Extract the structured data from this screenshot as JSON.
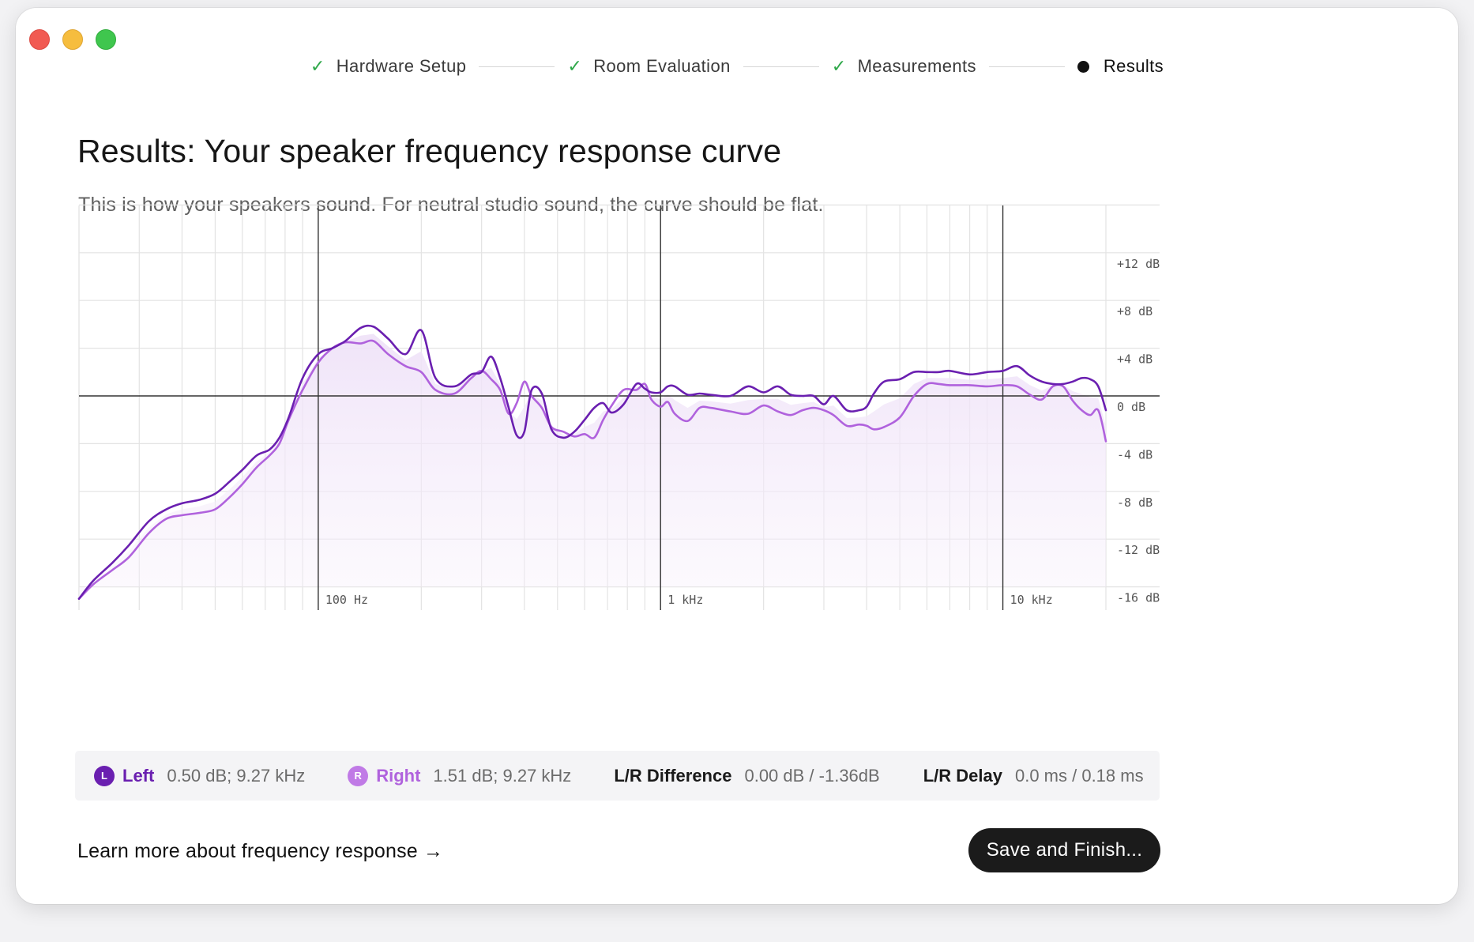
{
  "window": {
    "controls": [
      "close-button",
      "minimize-button",
      "maximize-button"
    ]
  },
  "stepper": {
    "steps": [
      {
        "label": "Hardware Setup",
        "status": "done"
      },
      {
        "label": "Room Evaluation",
        "status": "done"
      },
      {
        "label": "Measurements",
        "status": "done"
      },
      {
        "label": "Results",
        "status": "current"
      }
    ],
    "check_glyph": "✓"
  },
  "header": {
    "title": "Results: Your speaker frequency response curve",
    "subtitle": "This is how your speakers sound. For neutral studio sound, the curve should be flat."
  },
  "colors": {
    "left": "#6a1fb0",
    "right": "#b062dd",
    "fill": "#f3eafa",
    "grid": "#e3e3e3",
    "major_grid": "#333333",
    "button": "#1b1b1b"
  },
  "chart_data": {
    "type": "line",
    "x_scale": "log",
    "xlim": [
      20,
      20000
    ],
    "ylim": [
      -16,
      16
    ],
    "y_ticks": [
      {
        "value": 12,
        "label": "+12 dB"
      },
      {
        "value": 8,
        "label": "+8 dB"
      },
      {
        "value": 4,
        "label": "+4 dB"
      },
      {
        "value": 0,
        "label": "0 dB"
      },
      {
        "value": -4,
        "label": "-4 dB"
      },
      {
        "value": -8,
        "label": "-8 dB"
      },
      {
        "value": -12,
        "label": "-12 dB"
      },
      {
        "value": -16,
        "label": "-16 dB"
      }
    ],
    "x_ticks": [
      {
        "value": 100,
        "label": "100 Hz"
      },
      {
        "value": 1000,
        "label": "1 kHz"
      },
      {
        "value": 10000,
        "label": "10 kHz"
      }
    ],
    "grid": true,
    "series": [
      {
        "name": "Left",
        "x": [
          20,
          22,
          25,
          28,
          32,
          36,
          40,
          45,
          50,
          55,
          60,
          66,
          72,
          77,
          82,
          90,
          100,
          110,
          120,
          133,
          145,
          160,
          180,
          200,
          220,
          250,
          280,
          300,
          320,
          340,
          360,
          380,
          400,
          420,
          450,
          480,
          520,
          560,
          600,
          640,
          680,
          720,
          780,
          850,
          900,
          940,
          1000,
          1050,
          1100,
          1200,
          1300,
          1400,
          1600,
          1800,
          2000,
          2200,
          2400,
          2600,
          2800,
          3000,
          3200,
          3500,
          3800,
          4000,
          4200,
          4500,
          5000,
          5500,
          6000,
          6500,
          7000,
          8000,
          9000,
          10000,
          11000,
          12000,
          13000,
          14000,
          15000,
          16000,
          17000,
          18000,
          19000,
          20000
        ],
        "y": [
          -17,
          -15.5,
          -14,
          -12.5,
          -10.5,
          -9.5,
          -9.0,
          -8.7,
          -8.2,
          -7.2,
          -6.2,
          -5.0,
          -4.5,
          -3.5,
          -1.8,
          1.5,
          3.5,
          4.0,
          4.6,
          5.7,
          5.8,
          4.8,
          3.5,
          5.5,
          1.5,
          0.8,
          1.8,
          2.0,
          3.3,
          1.5,
          -1.0,
          -3.3,
          -3.0,
          0.5,
          0.2,
          -2.8,
          -3.5,
          -3.0,
          -2.0,
          -1.0,
          -0.6,
          -1.4,
          -0.7,
          1.0,
          0.6,
          0.3,
          0.3,
          0.8,
          0.8,
          0.1,
          0.2,
          0.1,
          0.0,
          0.8,
          0.3,
          0.8,
          0.1,
          0.0,
          0.0,
          -0.7,
          0.0,
          -1.2,
          -1.2,
          -0.9,
          0.2,
          1.2,
          1.4,
          2.0,
          2.0,
          2.0,
          2.1,
          1.8,
          2.0,
          2.1,
          2.5,
          1.7,
          1.2,
          1.0,
          1.0,
          1.2,
          1.5,
          1.4,
          0.8,
          -1.2
        ]
      },
      {
        "name": "Right",
        "x": [
          20,
          22,
          25,
          28,
          32,
          36,
          40,
          45,
          50,
          55,
          60,
          66,
          72,
          77,
          82,
          90,
          100,
          110,
          120,
          133,
          145,
          160,
          180,
          200,
          220,
          250,
          280,
          300,
          320,
          340,
          360,
          380,
          400,
          420,
          450,
          480,
          520,
          560,
          600,
          640,
          680,
          720,
          780,
          850,
          900,
          940,
          1000,
          1050,
          1100,
          1200,
          1300,
          1400,
          1600,
          1800,
          2000,
          2200,
          2400,
          2600,
          2800,
          3000,
          3200,
          3500,
          3800,
          4000,
          4200,
          4500,
          5000,
          5500,
          6000,
          6500,
          7000,
          8000,
          9000,
          10000,
          11000,
          12000,
          13000,
          14000,
          15000,
          16000,
          17000,
          18000,
          19000,
          20000
        ],
        "y": [
          -17,
          -15.8,
          -14.6,
          -13.5,
          -11.5,
          -10.3,
          -10.0,
          -9.8,
          -9.5,
          -8.5,
          -7.4,
          -6.0,
          -5.0,
          -4.0,
          -2.0,
          0.5,
          2.8,
          4.0,
          4.5,
          4.4,
          4.6,
          3.5,
          2.5,
          2.0,
          0.5,
          0.2,
          1.5,
          2.1,
          1.4,
          0.5,
          -1.5,
          -0.6,
          1.2,
          0.0,
          -1.0,
          -2.6,
          -3.0,
          -3.4,
          -3.2,
          -3.5,
          -2.0,
          -0.8,
          0.5,
          0.5,
          1.0,
          -0.3,
          -0.9,
          -0.5,
          -1.5,
          -2.1,
          -1.0,
          -1.0,
          -1.3,
          -1.5,
          -0.8,
          -1.3,
          -1.6,
          -1.2,
          -1.0,
          -1.2,
          -1.6,
          -2.5,
          -2.4,
          -2.5,
          -2.8,
          -2.6,
          -1.8,
          0.0,
          1.0,
          1.0,
          0.9,
          0.9,
          0.8,
          0.9,
          0.8,
          0.1,
          -0.3,
          0.8,
          0.8,
          -0.4,
          -1.2,
          -1.6,
          -1.2,
          -3.8
        ]
      }
    ]
  },
  "readout": {
    "left": {
      "badge": "L",
      "label": "Left",
      "value": "0.50 dB; 9.27 kHz"
    },
    "right": {
      "badge": "R",
      "label": "Right",
      "value": "1.51 dB; 9.27 kHz"
    },
    "difference": {
      "label": "L/R Difference",
      "value": "0.00 dB / -1.36dB"
    },
    "delay": {
      "label": "L/R Delay",
      "value": "0.0 ms / 0.18 ms"
    }
  },
  "footer": {
    "learn_more": "Learn more about frequency response →",
    "save_label": "Save and Finish..."
  }
}
